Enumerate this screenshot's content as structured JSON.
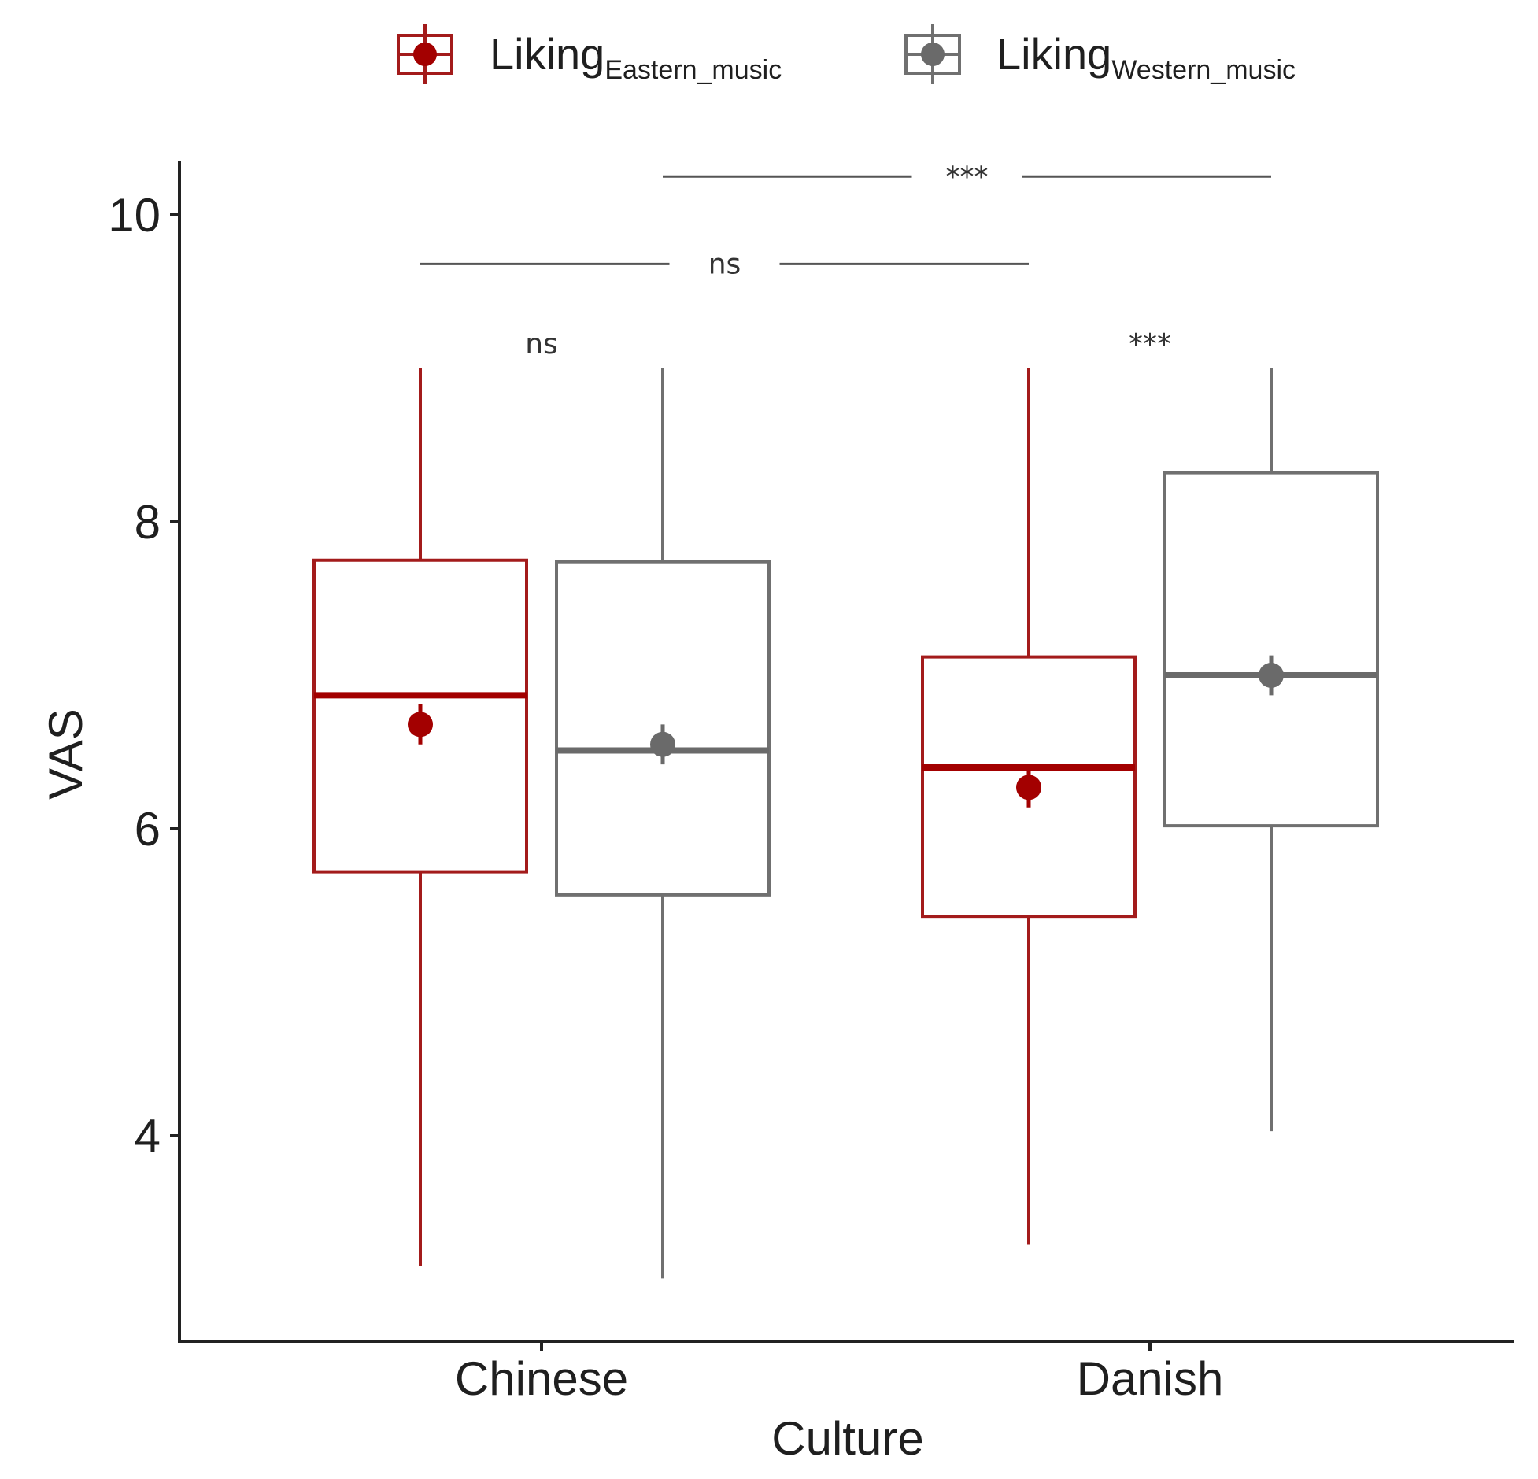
{
  "chart_data": {
    "type": "box",
    "xlabel": "Culture",
    "ylabel": "VAS",
    "categories": [
      "Chinese",
      "Danish"
    ],
    "yticks": [
      4,
      6,
      8,
      10
    ],
    "ylim": [
      2.7,
      10.35
    ],
    "grid": false,
    "legend_position": "top",
    "series": [
      {
        "name_main": "Liking",
        "name_sub": "Eastern_music",
        "color": "#a31b1b",
        "mean_color": "#a30000",
        "boxes": [
          {
            "category": "Chinese",
            "whisker_low": 3.15,
            "q1": 5.72,
            "median": 6.87,
            "q3": 7.75,
            "whisker_high": 9.0,
            "mean": 6.68,
            "mean_ci": [
              6.55,
              6.81
            ]
          },
          {
            "category": "Danish",
            "whisker_low": 3.29,
            "q1": 5.43,
            "median": 6.4,
            "q3": 7.12,
            "whisker_high": 9.0,
            "mean": 6.27,
            "mean_ci": [
              6.14,
              6.4
            ]
          }
        ]
      },
      {
        "name_main": "Liking",
        "name_sub": "Western_music",
        "color": "#707070",
        "mean_color": "#6a6a6a",
        "boxes": [
          {
            "category": "Chinese",
            "whisker_low": 3.07,
            "q1": 5.57,
            "median": 6.51,
            "q3": 7.74,
            "whisker_high": 9.0,
            "mean": 6.55,
            "mean_ci": [
              6.42,
              6.68
            ]
          },
          {
            "category": "Danish",
            "whisker_low": 4.03,
            "q1": 6.02,
            "median": 7.0,
            "q3": 8.32,
            "whisker_high": 9.0,
            "mean": 7.0,
            "mean_ci": [
              6.87,
              7.13
            ]
          }
        ]
      }
    ],
    "significance": [
      {
        "label": "ns",
        "type": "within",
        "category": "Chinese",
        "y": 9.15
      },
      {
        "label": "***",
        "type": "within",
        "category": "Danish",
        "y": 9.15
      },
      {
        "label": "ns",
        "type": "between",
        "from": {
          "category": "Chinese",
          "series": 0
        },
        "to": {
          "category": "Danish",
          "series": 0
        },
        "y": 9.68
      },
      {
        "label": "***",
        "type": "between",
        "from": {
          "category": "Chinese",
          "series": 1
        },
        "to": {
          "category": "Danish",
          "series": 1
        },
        "y": 10.25
      }
    ]
  }
}
